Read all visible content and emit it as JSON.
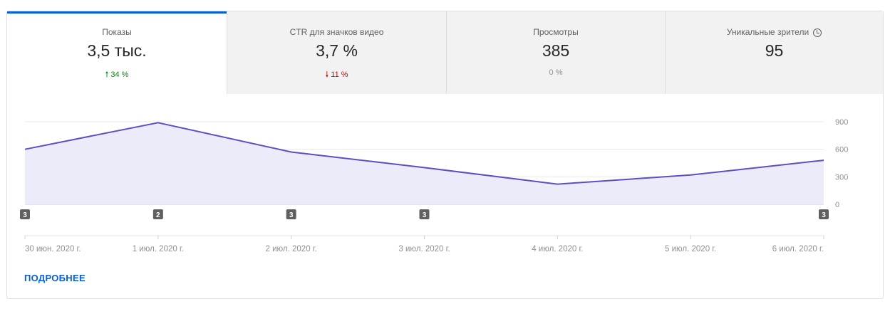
{
  "tabs": [
    {
      "label": "Показы",
      "value": "3,5 тыс.",
      "delta": "34 %",
      "trend": "up",
      "selected": true
    },
    {
      "label": "CTR для значков видео",
      "value": "3,7 %",
      "delta": "11 %",
      "trend": "down",
      "selected": false
    },
    {
      "label": "Просмотры",
      "value": "385",
      "delta": "0 %",
      "trend": "flat",
      "selected": false
    },
    {
      "label": "Уникальные зрители",
      "value": "95",
      "delta": "",
      "trend": "none",
      "selected": false,
      "icon": "clock-icon"
    }
  ],
  "colors": {
    "accent": "#065fd4",
    "line": "#5c4fc4",
    "fill": "#ecebfa",
    "up": "#0a8c15",
    "down": "#cc0000"
  },
  "chart_data": {
    "type": "area",
    "x": [
      "30 июн. 2020 г.",
      "1 июл. 2020 г.",
      "2 июл. 2020 г.",
      "3 июл. 2020 г.",
      "4 июл. 2020 г.",
      "5 июл. 2020 г.",
      "6 июл. 2020 г."
    ],
    "series": [
      {
        "values": [
          600,
          890,
          570,
          400,
          220,
          320,
          480
        ]
      }
    ],
    "ylim": [
      0,
      900
    ],
    "yticks": [
      "0",
      "300",
      "600",
      "900"
    ],
    "y_axis_side": "right",
    "grid": true,
    "markers": [
      {
        "x": "30 июн. 2020 г.",
        "label": "3"
      },
      {
        "x": "1 июл. 2020 г.",
        "label": "2"
      },
      {
        "x": "2 июл. 2020 г.",
        "label": "3"
      },
      {
        "x": "3 июл. 2020 г.",
        "label": "3"
      },
      {
        "x": "6 июл. 2020 г.",
        "label": "3"
      }
    ]
  },
  "footer": {
    "more_label": "ПОДРОБНЕЕ"
  }
}
